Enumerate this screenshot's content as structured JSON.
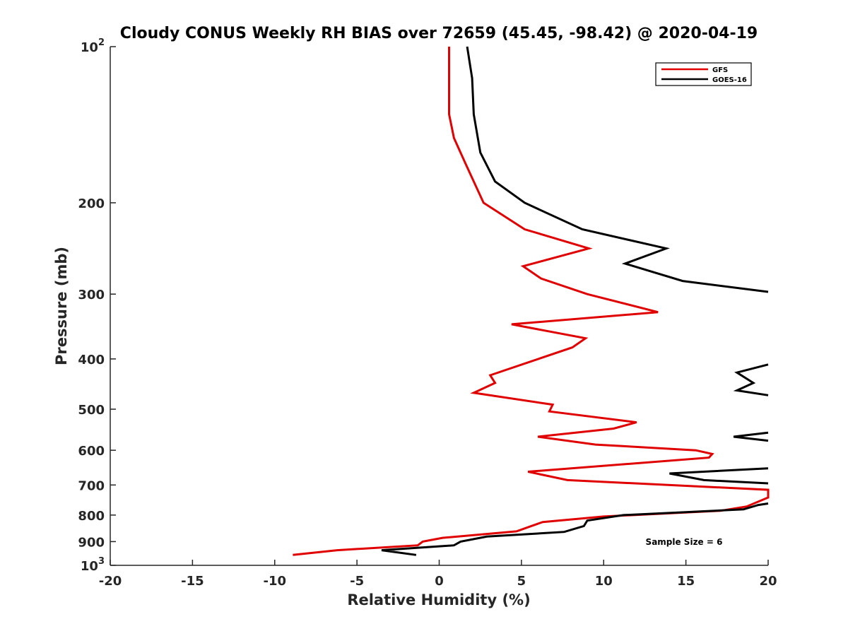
{
  "chart_data": {
    "type": "line",
    "title": "Cloudy CONUS Weekly RH BIAS over 72659 (45.45, -98.42) @ 2020-04-19",
    "xlabel": "Relative Humidity (%)",
    "ylabel": "Pressure (mb)",
    "xlim": [
      -20,
      20
    ],
    "ylim": [
      100,
      1000
    ],
    "y_scale": "log",
    "y_reversed": true,
    "grid": false,
    "legend_position": "top-right",
    "annotation": "Sample Size = 6",
    "x_ticks": [
      "-20",
      "-15",
      "-10",
      "-5",
      "0",
      "5",
      "10",
      "15",
      "20"
    ],
    "y_ticks": [
      {
        "value": 100,
        "base": "10",
        "exp": "2"
      },
      {
        "value": 200,
        "label": "200"
      },
      {
        "value": 300,
        "label": "300"
      },
      {
        "value": 400,
        "label": "400"
      },
      {
        "value": 500,
        "label": "500"
      },
      {
        "value": 600,
        "label": "600"
      },
      {
        "value": 700,
        "label": "700"
      },
      {
        "value": 800,
        "label": "800"
      },
      {
        "value": 900,
        "label": "900"
      },
      {
        "value": 1000,
        "base": "10",
        "exp": "3"
      }
    ],
    "series": [
      {
        "name": "GFS",
        "color": "#e00000",
        "points": [
          [
            0.6,
            100
          ],
          [
            0.6,
            135
          ],
          [
            0.9,
            150
          ],
          [
            1.6,
            168
          ],
          [
            2.7,
            200
          ],
          [
            5.2,
            225
          ],
          [
            9.1,
            245
          ],
          [
            5.1,
            265
          ],
          [
            6.2,
            280
          ],
          [
            9.0,
            300
          ],
          [
            13.3,
            325
          ],
          [
            4.4,
            343
          ],
          [
            8.9,
            365
          ],
          [
            8.1,
            380
          ],
          [
            3.1,
            430
          ],
          [
            3.4,
            445
          ],
          [
            2.1,
            465
          ],
          [
            6.9,
            490
          ],
          [
            6.7,
            505
          ],
          [
            12.0,
            530
          ],
          [
            10.6,
            545
          ],
          [
            6.0,
            565
          ],
          [
            9.5,
            585
          ],
          [
            15.6,
            600
          ],
          [
            16.6,
            610
          ],
          [
            16.4,
            620
          ],
          [
            5.4,
            660
          ],
          [
            7.8,
            685
          ],
          [
            20.0,
            715
          ],
          [
            20.0,
            740
          ],
          [
            18.7,
            770
          ],
          [
            17.1,
            785
          ],
          [
            10.0,
            805
          ],
          [
            6.3,
            825
          ],
          [
            5.6,
            840
          ],
          [
            4.7,
            860
          ],
          [
            0.2,
            885
          ],
          [
            -1.0,
            900
          ],
          [
            -1.3,
            915
          ],
          [
            -6.2,
            935
          ],
          [
            -8.9,
            955
          ]
        ]
      },
      {
        "name": "GOES-16",
        "color": "#000000",
        "points": [
          [
            1.7,
            100
          ],
          [
            2.0,
            115
          ],
          [
            2.1,
            135
          ],
          [
            2.5,
            160
          ],
          [
            3.4,
            182
          ],
          [
            5.2,
            200
          ],
          [
            8.7,
            225
          ],
          [
            13.8,
            245
          ],
          [
            11.3,
            262
          ],
          [
            14.8,
            283
          ],
          [
            20.0,
            297
          ],
          [
            null,
            null
          ],
          [
            20.0,
            410
          ],
          [
            18.1,
            425
          ],
          [
            19.1,
            445
          ],
          [
            18.1,
            460
          ],
          [
            20.0,
            470
          ],
          [
            null,
            null
          ],
          [
            20.0,
            555
          ],
          [
            17.9,
            565
          ],
          [
            20.0,
            575
          ],
          [
            null,
            null
          ],
          [
            20.0,
            650
          ],
          [
            14.0,
            665
          ],
          [
            16.1,
            685
          ],
          [
            20.0,
            695
          ],
          [
            null,
            null
          ],
          [
            20.0,
            760
          ],
          [
            19.4,
            765
          ],
          [
            18.5,
            780
          ],
          [
            11.2,
            800
          ],
          [
            9.0,
            820
          ],
          [
            8.8,
            840
          ],
          [
            7.6,
            862
          ],
          [
            2.9,
            880
          ],
          [
            1.3,
            900
          ],
          [
            0.9,
            915
          ],
          [
            -3.5,
            935
          ],
          [
            -1.4,
            955
          ]
        ]
      }
    ]
  }
}
